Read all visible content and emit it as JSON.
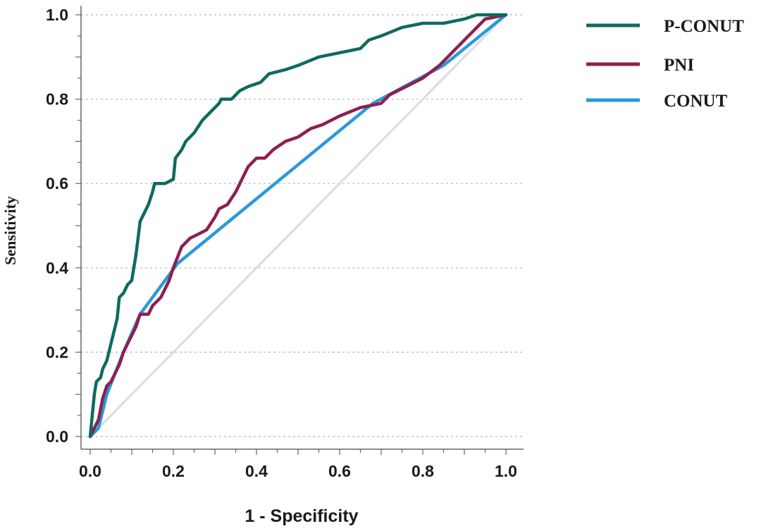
{
  "chart_data": {
    "type": "line",
    "title": "",
    "xlabel": "1 - Specificity",
    "ylabel": "Sensitivity",
    "xlim": [
      0,
      1
    ],
    "ylim": [
      0,
      1
    ],
    "x_ticks": [
      "0.0",
      "0.2",
      "0.4",
      "0.6",
      "0.8",
      "1.0"
    ],
    "y_ticks": [
      "0.0",
      "0.2",
      "0.4",
      "0.6",
      "0.8",
      "1.0"
    ],
    "grid": "horizontal dotted",
    "legend_position": "top-right outside plot",
    "reference_line": {
      "x": [
        0,
        1
      ],
      "y": [
        0,
        1
      ],
      "color": "#dcdcdc"
    },
    "series": [
      {
        "name": "P-CONUT",
        "color": "#0e6b5e",
        "points": [
          [
            0,
            0
          ],
          [
            0.005,
            0.05
          ],
          [
            0.01,
            0.1
          ],
          [
            0.015,
            0.13
          ],
          [
            0.025,
            0.14
          ],
          [
            0.03,
            0.16
          ],
          [
            0.04,
            0.18
          ],
          [
            0.05,
            0.22
          ],
          [
            0.06,
            0.26
          ],
          [
            0.065,
            0.28
          ],
          [
            0.07,
            0.33
          ],
          [
            0.08,
            0.34
          ],
          [
            0.09,
            0.36
          ],
          [
            0.1,
            0.37
          ],
          [
            0.105,
            0.4
          ],
          [
            0.11,
            0.43
          ],
          [
            0.115,
            0.47
          ],
          [
            0.12,
            0.51
          ],
          [
            0.13,
            0.53
          ],
          [
            0.14,
            0.55
          ],
          [
            0.15,
            0.58
          ],
          [
            0.155,
            0.6
          ],
          [
            0.18,
            0.6
          ],
          [
            0.2,
            0.61
          ],
          [
            0.205,
            0.66
          ],
          [
            0.22,
            0.68
          ],
          [
            0.23,
            0.7
          ],
          [
            0.25,
            0.72
          ],
          [
            0.27,
            0.75
          ],
          [
            0.29,
            0.77
          ],
          [
            0.31,
            0.79
          ],
          [
            0.315,
            0.8
          ],
          [
            0.34,
            0.8
          ],
          [
            0.36,
            0.82
          ],
          [
            0.38,
            0.83
          ],
          [
            0.41,
            0.84
          ],
          [
            0.43,
            0.86
          ],
          [
            0.47,
            0.87
          ],
          [
            0.5,
            0.88
          ],
          [
            0.55,
            0.9
          ],
          [
            0.6,
            0.91
          ],
          [
            0.65,
            0.92
          ],
          [
            0.67,
            0.94
          ],
          [
            0.7,
            0.95
          ],
          [
            0.75,
            0.97
          ],
          [
            0.8,
            0.98
          ],
          [
            0.85,
            0.98
          ],
          [
            0.9,
            0.99
          ],
          [
            0.93,
            1.0
          ],
          [
            1.0,
            1.0
          ]
        ]
      },
      {
        "name": "PNI",
        "color": "#8e1f52",
        "points": [
          [
            0,
            0
          ],
          [
            0.02,
            0.04
          ],
          [
            0.03,
            0.09
          ],
          [
            0.04,
            0.12
          ],
          [
            0.05,
            0.13
          ],
          [
            0.06,
            0.15
          ],
          [
            0.07,
            0.17
          ],
          [
            0.08,
            0.2
          ],
          [
            0.09,
            0.22
          ],
          [
            0.1,
            0.24
          ],
          [
            0.11,
            0.26
          ],
          [
            0.12,
            0.29
          ],
          [
            0.14,
            0.29
          ],
          [
            0.15,
            0.31
          ],
          [
            0.17,
            0.33
          ],
          [
            0.19,
            0.37
          ],
          [
            0.2,
            0.4
          ],
          [
            0.22,
            0.45
          ],
          [
            0.24,
            0.47
          ],
          [
            0.26,
            0.48
          ],
          [
            0.28,
            0.49
          ],
          [
            0.3,
            0.52
          ],
          [
            0.31,
            0.54
          ],
          [
            0.33,
            0.55
          ],
          [
            0.35,
            0.58
          ],
          [
            0.37,
            0.62
          ],
          [
            0.38,
            0.64
          ],
          [
            0.4,
            0.66
          ],
          [
            0.42,
            0.66
          ],
          [
            0.44,
            0.68
          ],
          [
            0.47,
            0.7
          ],
          [
            0.5,
            0.71
          ],
          [
            0.53,
            0.73
          ],
          [
            0.56,
            0.74
          ],
          [
            0.6,
            0.76
          ],
          [
            0.65,
            0.78
          ],
          [
            0.7,
            0.79
          ],
          [
            0.72,
            0.81
          ],
          [
            0.76,
            0.83
          ],
          [
            0.8,
            0.85
          ],
          [
            0.84,
            0.88
          ],
          [
            0.88,
            0.92
          ],
          [
            0.92,
            0.96
          ],
          [
            0.95,
            0.99
          ],
          [
            1.0,
            1.0
          ]
        ]
      },
      {
        "name": "CONUT",
        "color": "#2a9ad8",
        "points": [
          [
            0,
            0
          ],
          [
            0.02,
            0.02
          ],
          [
            0.04,
            0.1
          ],
          [
            0.08,
            0.2
          ],
          [
            0.12,
            0.29
          ],
          [
            0.21,
            0.41
          ],
          [
            0.68,
            0.79
          ],
          [
            0.85,
            0.88
          ],
          [
            1.0,
            1.0
          ]
        ]
      }
    ]
  }
}
